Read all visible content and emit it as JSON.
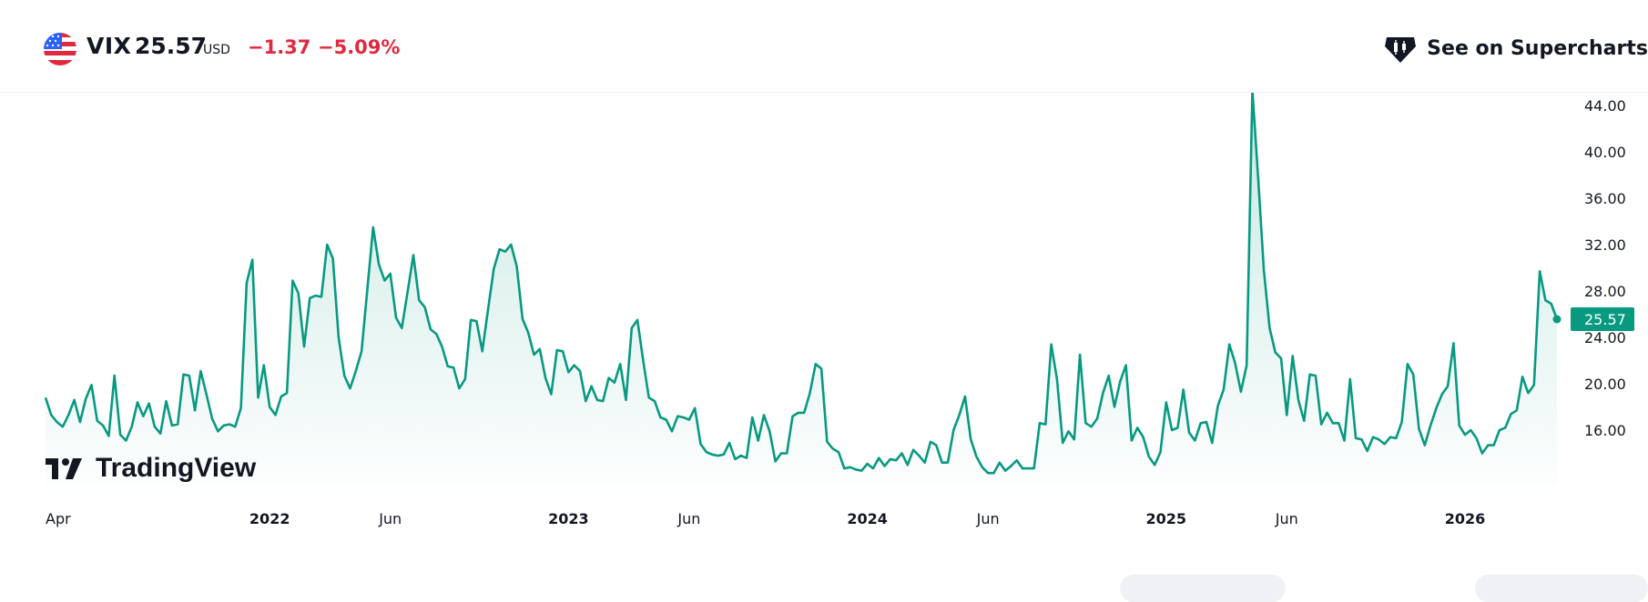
{
  "header": {
    "flag_icon": "us-flag-icon",
    "symbol": "VIX",
    "price": "25.57",
    "currency": "USD",
    "change": "−1.37",
    "change_percent": "−5.09%",
    "supercharts_label": "See on Supercharts",
    "change_color": "#e0293d"
  },
  "chart_data": {
    "type": "area",
    "title": "",
    "xlabel": "",
    "ylabel": "",
    "line_color": "#089981",
    "ylim": [
      12.5,
      45.5
    ],
    "y_ticks": [
      "44.00",
      "40.00",
      "36.00",
      "32.00",
      "28.00",
      "24.00",
      "20.00",
      "16.00"
    ],
    "y_tick_values": [
      44,
      40,
      36,
      32,
      28,
      24,
      20,
      16
    ],
    "x_ticks": [
      {
        "label": "Apr",
        "index": 0
      },
      {
        "label": "2022",
        "index": 39
      },
      {
        "label": "Jun",
        "index": 60
      },
      {
        "label": "2023",
        "index": 91
      },
      {
        "label": "Jun",
        "index": 112
      },
      {
        "label": "2024",
        "index": 143
      },
      {
        "label": "Jun",
        "index": 164
      },
      {
        "label": "2025",
        "index": 195
      },
      {
        "label": "Jun",
        "index": 216
      },
      {
        "label": "2026",
        "index": 247
      }
    ],
    "last_value_label": "25.57",
    "watermark": "TradingView",
    "series": [
      {
        "values": [
          18.8,
          17.3,
          16.7,
          16.3,
          17.3,
          18.6,
          16.7,
          18.7,
          19.9,
          16.8,
          16.4,
          15.5,
          20.7,
          15.6,
          15.1,
          16.3,
          18.4,
          17.2,
          18.3,
          16.3,
          15.7,
          18.5,
          16.4,
          16.5,
          20.8,
          20.7,
          17.7,
          21.1,
          19.1,
          17.0,
          15.9,
          16.4,
          16.5,
          16.3,
          17.9,
          28.7,
          30.7,
          18.8,
          21.6,
          18.0,
          17.3,
          18.9,
          19.2,
          28.9,
          27.8,
          23.2,
          27.4,
          27.6,
          27.5,
          32.0,
          30.8,
          24.0,
          20.7,
          19.6,
          21.1,
          22.8,
          28.2,
          33.5,
          30.3,
          28.9,
          29.5,
          25.7,
          24.8,
          27.9,
          31.1,
          27.2,
          26.6,
          24.7,
          24.3,
          23.2,
          21.5,
          21.4,
          19.6,
          20.4,
          25.5,
          25.4,
          22.8,
          26.4,
          29.9,
          31.6,
          31.4,
          32.0,
          30.1,
          25.6,
          24.4,
          22.5,
          23.0,
          20.5,
          19.1,
          22.9,
          22.8,
          21.0,
          21.6,
          21.1,
          18.5,
          19.8,
          18.6,
          18.5,
          20.5,
          20.1,
          21.7,
          18.6,
          24.8,
          25.5,
          22.0,
          18.8,
          18.5,
          17.1,
          16.9,
          15.9,
          17.2,
          17.1,
          16.9,
          17.9,
          14.8,
          14.1,
          13.9,
          13.8,
          13.9,
          14.9,
          13.5,
          13.8,
          13.6,
          17.1,
          15.1,
          17.3,
          15.9,
          13.3,
          14.0,
          14.0,
          17.2,
          17.5,
          17.5,
          19.2,
          21.7,
          21.3,
          15.0,
          14.4,
          14.1,
          12.7,
          12.8,
          12.6,
          12.5,
          13.1,
          12.7,
          13.6,
          12.9,
          13.5,
          13.4,
          14.0,
          13.0,
          14.3,
          13.8,
          13.2,
          15.0,
          14.7,
          13.2,
          13.2,
          16.0,
          17.3,
          18.9,
          15.2,
          13.7,
          12.8,
          12.3,
          12.3,
          13.2,
          12.5,
          12.9,
          13.4,
          12.7,
          12.7,
          12.7,
          16.6,
          16.5,
          23.4,
          20.4,
          14.9,
          15.9,
          15.2,
          22.5,
          16.6,
          16.3,
          17.0,
          19.2,
          20.7,
          18.0,
          20.2,
          21.6,
          15.1,
          16.2,
          15.4,
          13.7,
          13.0,
          14.1,
          18.4,
          16.0,
          16.2,
          19.5,
          15.8,
          15.1,
          16.6,
          16.7,
          14.9,
          18.1,
          19.5,
          23.4,
          21.8,
          19.3,
          21.6,
          45.3,
          37.8,
          29.8,
          24.8,
          22.7,
          22.2,
          17.3,
          22.4,
          18.6,
          16.8,
          20.8,
          20.7,
          16.5,
          17.5,
          16.6,
          16.6,
          15.1,
          20.4,
          15.3,
          15.2,
          14.2,
          15.4,
          15.2,
          14.8,
          15.4,
          15.3,
          16.7,
          21.7,
          20.8,
          16.1,
          14.7,
          16.4,
          17.9,
          19.1,
          19.8,
          23.5,
          16.4,
          15.6,
          16.0,
          15.3,
          14.0,
          14.7,
          14.7,
          16.0,
          16.2,
          17.4,
          17.7,
          20.6,
          19.2,
          19.9,
          29.7,
          27.2,
          26.9,
          25.57
        ]
      }
    ]
  }
}
